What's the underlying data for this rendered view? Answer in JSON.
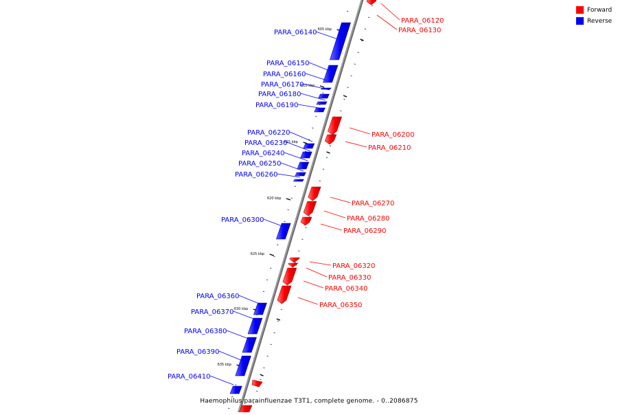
{
  "caption": "Haemophilus parainfluenzae T3T1, complete genome. - 0..2086875",
  "legend": {
    "forward": {
      "label": "Forward",
      "color": "#ff0000"
    },
    "reverse": {
      "label": "Reverse",
      "color": "#0000ff"
    }
  },
  "scale_labels": [
    "605 kbp",
    "610 kbp",
    "615 kbp",
    "620 kbp",
    "625 kbp",
    "630 kbp",
    "635 kbp"
  ],
  "genes": [
    {
      "name": "PARA_06120",
      "strand": "forward"
    },
    {
      "name": "PARA_06130",
      "strand": "forward"
    },
    {
      "name": "PARA_06140",
      "strand": "reverse"
    },
    {
      "name": "PARA_06150",
      "strand": "reverse"
    },
    {
      "name": "PARA_06160",
      "strand": "reverse"
    },
    {
      "name": "PARA_06170",
      "strand": "reverse"
    },
    {
      "name": "PARA_06180",
      "strand": "reverse"
    },
    {
      "name": "PARA_06190",
      "strand": "reverse"
    },
    {
      "name": "PARA_06200",
      "strand": "forward"
    },
    {
      "name": "PARA_06210",
      "strand": "forward"
    },
    {
      "name": "PARA_06220",
      "strand": "reverse"
    },
    {
      "name": "PARA_06230",
      "strand": "reverse"
    },
    {
      "name": "PARA_06240",
      "strand": "reverse"
    },
    {
      "name": "PARA_06250",
      "strand": "reverse"
    },
    {
      "name": "PARA_06260",
      "strand": "reverse"
    },
    {
      "name": "PARA_06270",
      "strand": "forward"
    },
    {
      "name": "PARA_06280",
      "strand": "forward"
    },
    {
      "name": "PARA_06290",
      "strand": "forward"
    },
    {
      "name": "PARA_06300",
      "strand": "reverse"
    },
    {
      "name": "PARA_06320",
      "strand": "forward"
    },
    {
      "name": "PARA_06330",
      "strand": "forward"
    },
    {
      "name": "PARA_06340",
      "strand": "forward"
    },
    {
      "name": "PARA_06350",
      "strand": "forward"
    },
    {
      "name": "PARA_06360",
      "strand": "reverse"
    },
    {
      "name": "PARA_06370",
      "strand": "reverse"
    },
    {
      "name": "PARA_06380",
      "strand": "reverse"
    },
    {
      "name": "PARA_06390",
      "strand": "reverse"
    },
    {
      "name": "PARA_06410",
      "strand": "reverse"
    }
  ]
}
